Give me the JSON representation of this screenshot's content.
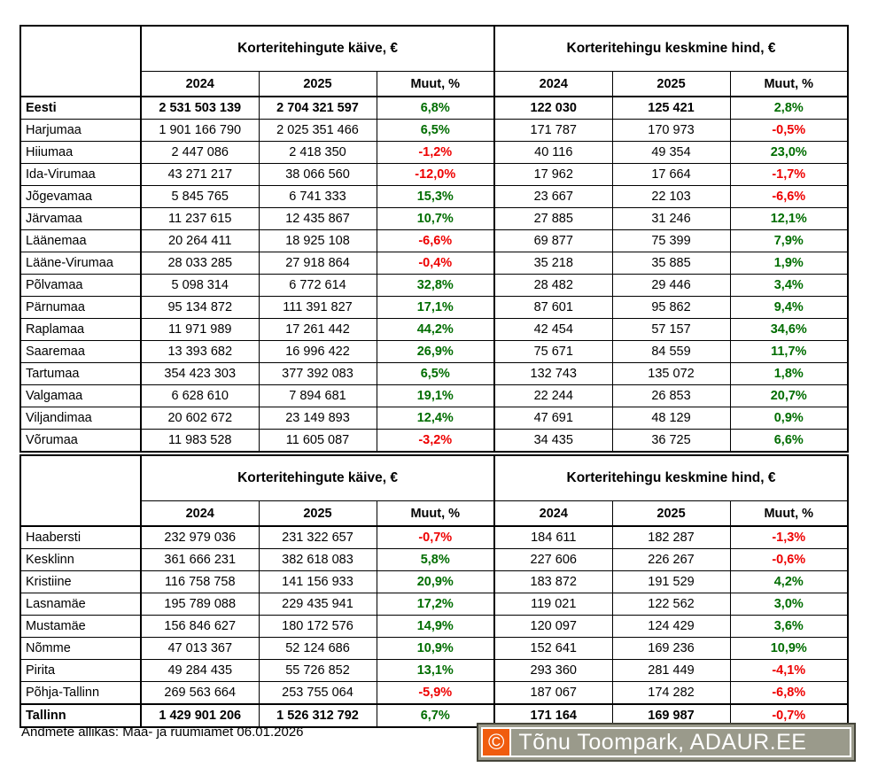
{
  "colors": {
    "positive": "#006d00",
    "negative": "#ee0000",
    "border": "#000000",
    "watermark_bg": "#9a9a8b",
    "watermark_orange": "#f05c0e",
    "watermark_border": "#45453a",
    "watermark_text": "#ffffff"
  },
  "headers": {
    "turnover_group": "Korteritehingute käive, €",
    "price_group": "Korteritehingu keskmine hind, €",
    "y2024": "2024",
    "y2025": "2025",
    "change": "Muut, %"
  },
  "table1": {
    "rows": [
      {
        "label": "Eesti",
        "bold": true,
        "t2024": "2 531 503 139",
        "t2025": "2 704 321 597",
        "tchg": "6,8%",
        "p2024": "122 030",
        "p2025": "125 421",
        "pchg": "2,8%"
      },
      {
        "label": "Harjumaa",
        "bold": false,
        "t2024": "1 901 166 790",
        "t2025": "2 025 351 466",
        "tchg": "6,5%",
        "p2024": "171 787",
        "p2025": "170 973",
        "pchg": "-0,5%"
      },
      {
        "label": "Hiiumaa",
        "bold": false,
        "t2024": "2 447 086",
        "t2025": "2 418 350",
        "tchg": "-1,2%",
        "p2024": "40 116",
        "p2025": "49 354",
        "pchg": "23,0%"
      },
      {
        "label": "Ida-Virumaa",
        "bold": false,
        "t2024": "43 271 217",
        "t2025": "38 066 560",
        "tchg": "-12,0%",
        "p2024": "17 962",
        "p2025": "17 664",
        "pchg": "-1,7%"
      },
      {
        "label": "Jõgevamaa",
        "bold": false,
        "t2024": "5 845 765",
        "t2025": "6 741 333",
        "tchg": "15,3%",
        "p2024": "23 667",
        "p2025": "22 103",
        "pchg": "-6,6%"
      },
      {
        "label": "Järvamaa",
        "bold": false,
        "t2024": "11 237 615",
        "t2025": "12 435 867",
        "tchg": "10,7%",
        "p2024": "27 885",
        "p2025": "31 246",
        "pchg": "12,1%"
      },
      {
        "label": "Läänemaa",
        "bold": false,
        "t2024": "20 264 411",
        "t2025": "18 925 108",
        "tchg": "-6,6%",
        "p2024": "69 877",
        "p2025": "75 399",
        "pchg": "7,9%"
      },
      {
        "label": "Lääne-Virumaa",
        "bold": false,
        "t2024": "28 033 285",
        "t2025": "27 918 864",
        "tchg": "-0,4%",
        "p2024": "35 218",
        "p2025": "35 885",
        "pchg": "1,9%"
      },
      {
        "label": "Põlvamaa",
        "bold": false,
        "t2024": "5 098 314",
        "t2025": "6 772 614",
        "tchg": "32,8%",
        "p2024": "28 482",
        "p2025": "29 446",
        "pchg": "3,4%"
      },
      {
        "label": "Pärnumaa",
        "bold": false,
        "t2024": "95 134 872",
        "t2025": "111 391 827",
        "tchg": "17,1%",
        "p2024": "87 601",
        "p2025": "95 862",
        "pchg": "9,4%"
      },
      {
        "label": "Raplamaa",
        "bold": false,
        "t2024": "11 971 989",
        "t2025": "17 261 442",
        "tchg": "44,2%",
        "p2024": "42 454",
        "p2025": "57 157",
        "pchg": "34,6%"
      },
      {
        "label": "Saaremaa",
        "bold": false,
        "t2024": "13 393 682",
        "t2025": "16 996 422",
        "tchg": "26,9%",
        "p2024": "75 671",
        "p2025": "84 559",
        "pchg": "11,7%"
      },
      {
        "label": "Tartumaa",
        "bold": false,
        "t2024": "354 423 303",
        "t2025": "377 392 083",
        "tchg": "6,5%",
        "p2024": "132 743",
        "p2025": "135 072",
        "pchg": "1,8%"
      },
      {
        "label": "Valgamaa",
        "bold": false,
        "t2024": "6 628 610",
        "t2025": "7 894 681",
        "tchg": "19,1%",
        "p2024": "22 244",
        "p2025": "26 853",
        "pchg": "20,7%"
      },
      {
        "label": "Viljandimaa",
        "bold": false,
        "t2024": "20 602 672",
        "t2025": "23 149 893",
        "tchg": "12,4%",
        "p2024": "47 691",
        "p2025": "48 129",
        "pchg": "0,9%"
      },
      {
        "label": "Võrumaa",
        "bold": false,
        "t2024": "11 983 528",
        "t2025": "11 605 087",
        "tchg": "-3,2%",
        "p2024": "34 435",
        "p2025": "36 725",
        "pchg": "6,6%"
      }
    ]
  },
  "table2": {
    "rows": [
      {
        "label": "Haabersti",
        "bold": false,
        "t2024": "232 979 036",
        "t2025": "231 322 657",
        "tchg": "-0,7%",
        "p2024": "184 611",
        "p2025": "182 287",
        "pchg": "-1,3%"
      },
      {
        "label": "Kesklinn",
        "bold": false,
        "t2024": "361 666 231",
        "t2025": "382 618 083",
        "tchg": "5,8%",
        "p2024": "227 606",
        "p2025": "226 267",
        "pchg": "-0,6%"
      },
      {
        "label": "Kristiine",
        "bold": false,
        "t2024": "116 758 758",
        "t2025": "141 156 933",
        "tchg": "20,9%",
        "p2024": "183 872",
        "p2025": "191 529",
        "pchg": "4,2%"
      },
      {
        "label": "Lasnamäe",
        "bold": false,
        "t2024": "195 789 088",
        "t2025": "229 435 941",
        "tchg": "17,2%",
        "p2024": "119 021",
        "p2025": "122 562",
        "pchg": "3,0%"
      },
      {
        "label": "Mustamäe",
        "bold": false,
        "t2024": "156 846 627",
        "t2025": "180 172 576",
        "tchg": "14,9%",
        "p2024": "120 097",
        "p2025": "124 429",
        "pchg": "3,6%"
      },
      {
        "label": "Nõmme",
        "bold": false,
        "t2024": "47 013 367",
        "t2025": "52 124 686",
        "tchg": "10,9%",
        "p2024": "152 641",
        "p2025": "169 236",
        "pchg": "10,9%"
      },
      {
        "label": "Pirita",
        "bold": false,
        "t2024": "49 284 435",
        "t2025": "55 726 852",
        "tchg": "13,1%",
        "p2024": "293 360",
        "p2025": "281 449",
        "pchg": "-4,1%"
      },
      {
        "label": "Põhja-Tallinn",
        "bold": false,
        "t2024": "269 563 664",
        "t2025": "253 755 064",
        "tchg": "-5,9%",
        "p2024": "187 067",
        "p2025": "174 282",
        "pchg": "-6,8%"
      },
      {
        "label": "Tallinn",
        "bold": true,
        "t2024": "1 429 901 206",
        "t2025": "1 526 312 792",
        "tchg": "6,7%",
        "p2024": "171 164",
        "p2025": "169 987",
        "pchg": "-0,7%"
      }
    ]
  },
  "footer": {
    "source": "Andmete allikas: Maa- ja ruumiamet 06.01.2026"
  },
  "watermark": {
    "copyright": "©",
    "text": "Tõnu Toompark, ADAUR.EE"
  }
}
